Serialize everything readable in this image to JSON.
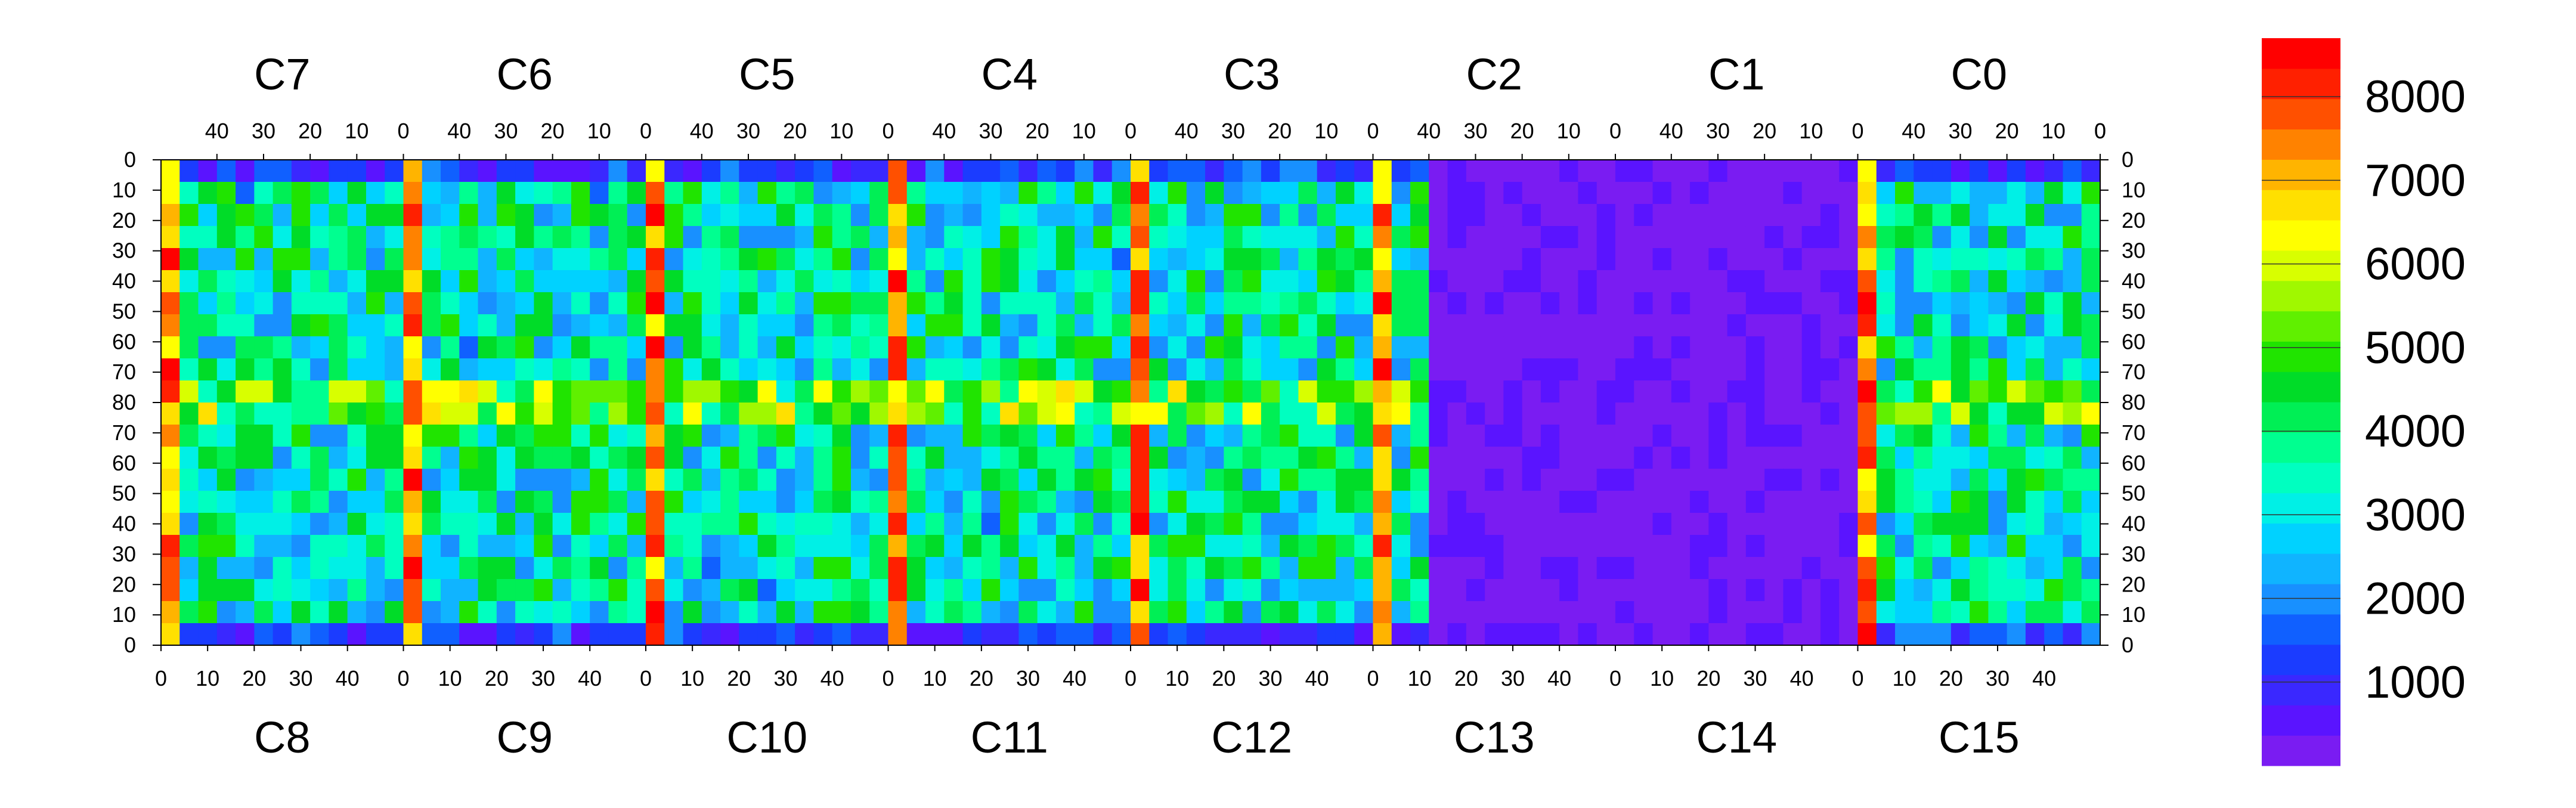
{
  "chart_data": {
    "type": "heatmap",
    "title": "",
    "color_scale": {
      "ticks": [
        1000,
        2000,
        3000,
        4000,
        5000,
        6000,
        7000,
        8000
      ],
      "tick_labels": [
        "1000",
        "2000",
        "3000",
        "4000",
        "5000",
        "6000",
        "7000",
        "8000"
      ],
      "min": 0,
      "max": 8700,
      "colors": [
        "#7a1cf2",
        "#5a14ff",
        "#3a28ff",
        "#1b3cff",
        "#1060ff",
        "#1890ff",
        "#10b4ff",
        "#00d2ff",
        "#00f0e6",
        "#00ffc0",
        "#00ff90",
        "#00ef55",
        "#00dc28",
        "#20e400",
        "#60f000",
        "#a0f800",
        "#d8ff00",
        "#ffff00",
        "#ffe000",
        "#ffb400",
        "#ff8200",
        "#ff5000",
        "#ff2000",
        "#ff0000"
      ]
    },
    "top_chips": [
      "C7",
      "C6",
      "C5",
      "C4",
      "C3",
      "C2",
      "C1",
      "C0"
    ],
    "bottom_chips": [
      "C8",
      "C9",
      "C10",
      "C11",
      "C12",
      "C13",
      "C14",
      "C15"
    ],
    "top_column_ticks": [
      "40",
      "30",
      "20",
      "10",
      "0"
    ],
    "bottom_column_ticks": [
      "0",
      "10",
      "20",
      "30",
      "40"
    ],
    "left_row_ticks": [
      "0",
      "10",
      "20",
      "30",
      "40",
      "50",
      "60",
      "70",
      "80",
      "70",
      "60",
      "50",
      "40",
      "30",
      "20",
      "10",
      "0"
    ],
    "right_row_ticks": [
      "0",
      "10",
      "20",
      "30",
      "40",
      "50",
      "60",
      "70",
      "80",
      "70",
      "60",
      "50",
      "40",
      "30",
      "20",
      "10",
      "0"
    ],
    "x_range_per_chip": [
      0,
      52
    ],
    "y_range_per_half": [
      0,
      80
    ],
    "grid": false,
    "legend": "right",
    "low_value_regions": [
      {
        "chips": [
          "C13",
          "C14"
        ],
        "description": "uniform low block"
      }
    ],
    "high_value_columns_at_chip_edges": true
  }
}
